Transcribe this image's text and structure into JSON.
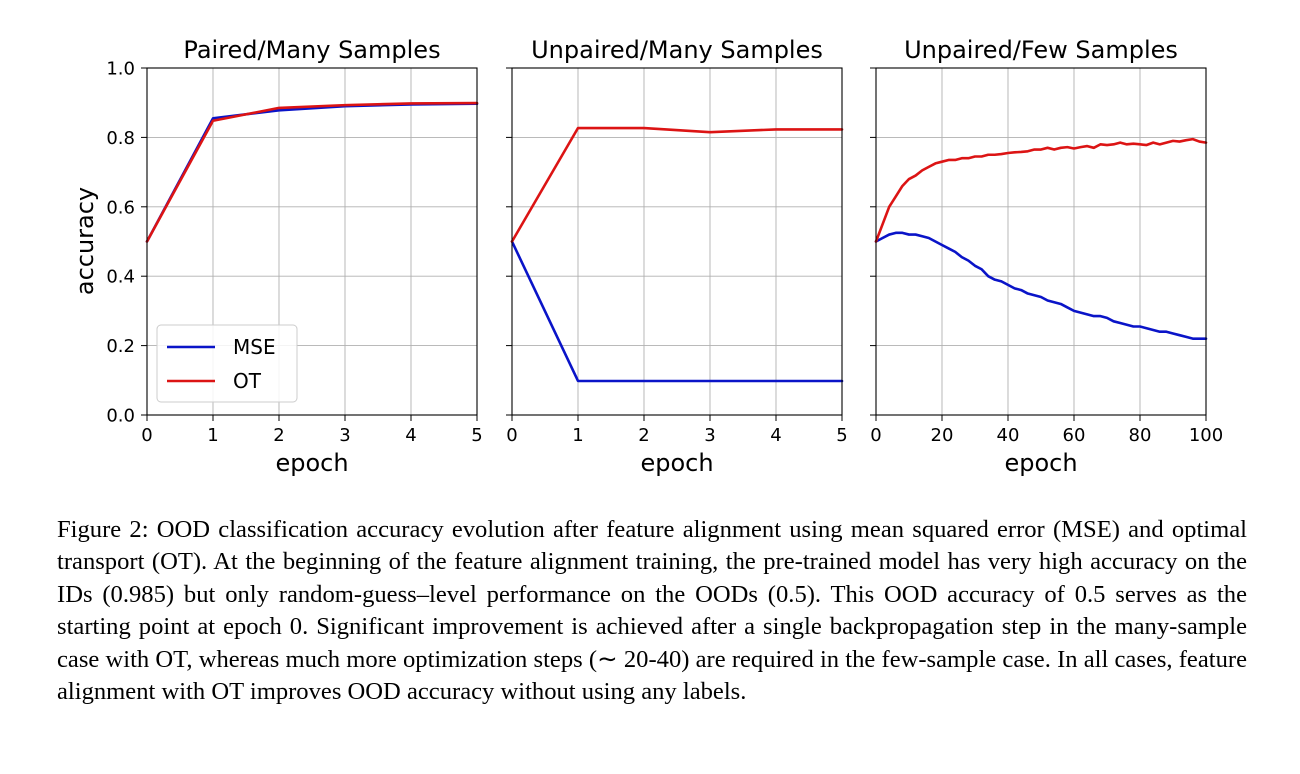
{
  "figure": {
    "ylabel": "accuracy",
    "legend": {
      "entries": [
        {
          "label": "MSE",
          "color": "#0a14c8"
        },
        {
          "label": "OT",
          "color": "#dc1414"
        }
      ]
    }
  },
  "chart_data": [
    {
      "type": "line",
      "title": "Paired/Many Samples",
      "xlabel": "epoch",
      "ylabel": "accuracy",
      "xlim": [
        0,
        5
      ],
      "ylim": [
        0,
        1.0
      ],
      "xticks": [
        "0",
        "1",
        "2",
        "3",
        "4",
        "5"
      ],
      "yticks": [
        "0.0",
        "0.2",
        "0.4",
        "0.6",
        "0.8",
        "1.0"
      ],
      "grid": true,
      "legend_position": "lower-left",
      "x": [
        0,
        1,
        2,
        3,
        4,
        5
      ],
      "series": [
        {
          "name": "MSE",
          "color": "#0a14c8",
          "values": [
            0.5,
            0.855,
            0.878,
            0.89,
            0.895,
            0.897
          ]
        },
        {
          "name": "OT",
          "color": "#dc1414",
          "values": [
            0.5,
            0.848,
            0.885,
            0.893,
            0.898,
            0.899
          ]
        }
      ]
    },
    {
      "type": "line",
      "title": "Unpaired/Many Samples",
      "xlabel": "epoch",
      "xlim": [
        0,
        5
      ],
      "ylim": [
        0,
        1.0
      ],
      "xticks": [
        "0",
        "1",
        "2",
        "3",
        "4",
        "5"
      ],
      "grid": true,
      "x": [
        0,
        1,
        2,
        3,
        4,
        5
      ],
      "series": [
        {
          "name": "MSE",
          "color": "#0a14c8",
          "values": [
            0.5,
            0.098,
            0.098,
            0.098,
            0.098,
            0.098
          ]
        },
        {
          "name": "OT",
          "color": "#dc1414",
          "values": [
            0.5,
            0.827,
            0.827,
            0.815,
            0.823,
            0.823
          ]
        }
      ]
    },
    {
      "type": "line",
      "title": "Unpaired/Few Samples",
      "xlabel": "epoch",
      "xlim": [
        0,
        100
      ],
      "ylim": [
        0,
        1.0
      ],
      "xticks": [
        "0",
        "20",
        "40",
        "60",
        "80",
        "100"
      ],
      "grid": true,
      "x": [
        0,
        2,
        4,
        6,
        8,
        10,
        12,
        14,
        16,
        18,
        20,
        22,
        24,
        26,
        28,
        30,
        32,
        34,
        36,
        38,
        40,
        42,
        44,
        46,
        48,
        50,
        52,
        54,
        56,
        58,
        60,
        62,
        64,
        66,
        68,
        70,
        72,
        74,
        76,
        78,
        80,
        82,
        84,
        86,
        88,
        90,
        92,
        94,
        96,
        98,
        100
      ],
      "series": [
        {
          "name": "MSE",
          "color": "#0a14c8",
          "values": [
            0.5,
            0.51,
            0.52,
            0.525,
            0.525,
            0.52,
            0.52,
            0.515,
            0.51,
            0.5,
            0.49,
            0.48,
            0.47,
            0.455,
            0.445,
            0.43,
            0.42,
            0.4,
            0.39,
            0.385,
            0.375,
            0.365,
            0.36,
            0.35,
            0.345,
            0.34,
            0.33,
            0.325,
            0.32,
            0.31,
            0.3,
            0.295,
            0.29,
            0.285,
            0.285,
            0.28,
            0.27,
            0.265,
            0.26,
            0.255,
            0.255,
            0.25,
            0.245,
            0.24,
            0.24,
            0.235,
            0.23,
            0.225,
            0.22,
            0.22,
            0.22
          ]
        },
        {
          "name": "OT",
          "color": "#dc1414",
          "values": [
            0.5,
            0.55,
            0.6,
            0.63,
            0.66,
            0.68,
            0.69,
            0.705,
            0.715,
            0.725,
            0.73,
            0.735,
            0.735,
            0.74,
            0.74,
            0.745,
            0.745,
            0.75,
            0.75,
            0.752,
            0.755,
            0.757,
            0.758,
            0.76,
            0.765,
            0.765,
            0.77,
            0.765,
            0.77,
            0.772,
            0.768,
            0.772,
            0.775,
            0.77,
            0.78,
            0.778,
            0.78,
            0.785,
            0.78,
            0.782,
            0.78,
            0.778,
            0.785,
            0.78,
            0.785,
            0.79,
            0.788,
            0.792,
            0.795,
            0.788,
            0.785
          ]
        }
      ]
    }
  ],
  "caption": {
    "text": "Figure 2: OOD classification accuracy evolution after feature alignment using mean squared error (MSE) and optimal transport (OT). At the beginning of the feature alignment training, the pre-trained model has very high accuracy on the IDs (0.985) but only random-guess–level performance on the OODs (0.5). This OOD accuracy of 0.5 serves as the starting point at epoch 0. Significant improvement is achieved after a single backpropagation step in the many-sample case with OT, whereas much more optimization steps (∼ 20-40) are required in the few-sample case. In all cases, feature alignment with OT improves OOD accuracy without using any labels."
  }
}
